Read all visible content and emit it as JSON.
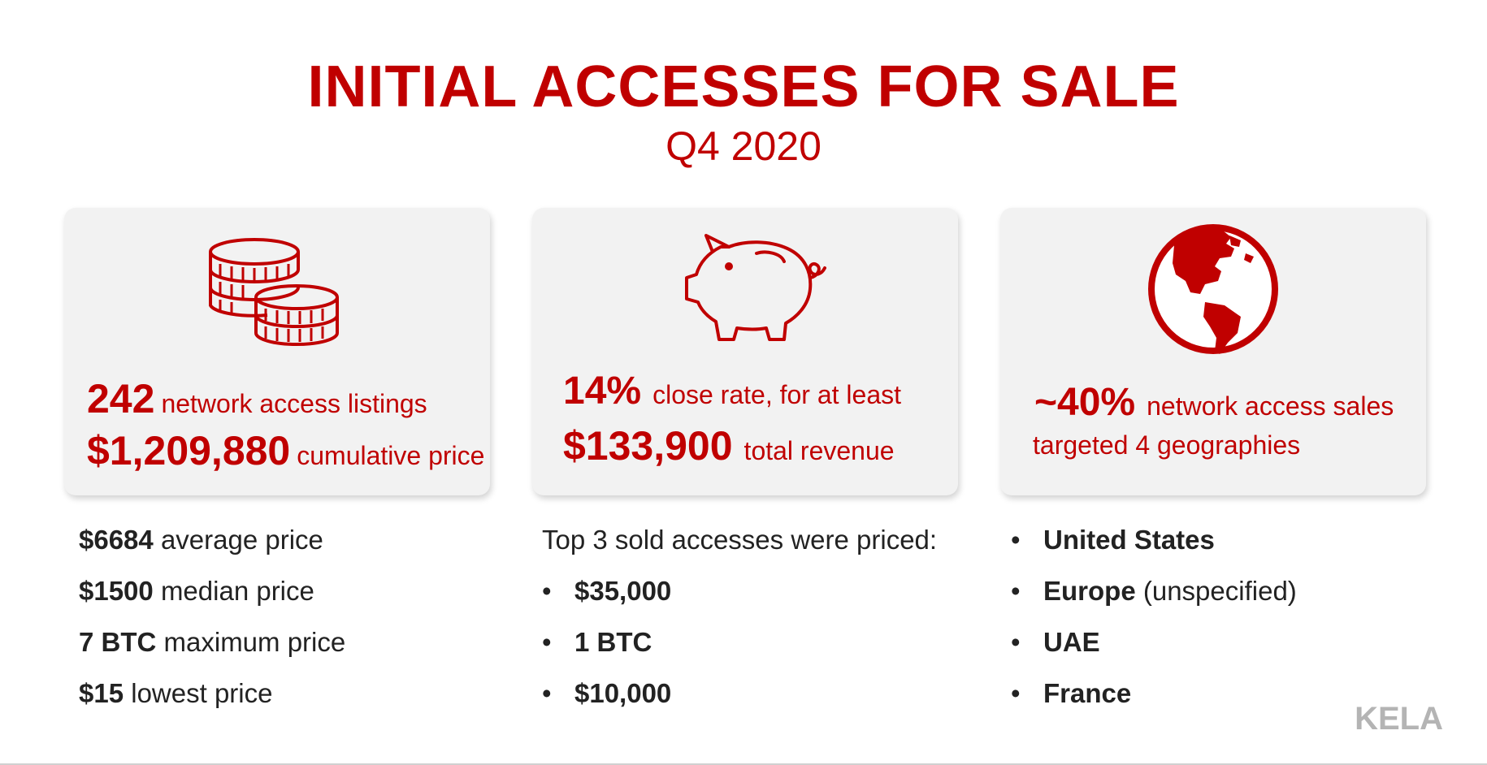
{
  "header": {
    "title": "INITIAL ACCESSES FOR SALE",
    "subtitle": "Q4 2020"
  },
  "cards": [
    {
      "icon": "coins-icon",
      "line1_value": "242",
      "line1_text": "network access listings",
      "line2_value": "$1,209,880",
      "line2_text": "cumulative price"
    },
    {
      "icon": "piggy-bank-icon",
      "line1_value": "14%",
      "line1_text": "close rate, for at least",
      "line2_value": "$133,900",
      "line2_text": "total  revenue"
    },
    {
      "icon": "globe-icon",
      "line1_value": "~40%",
      "line1_text": "network access sales",
      "line2_text": "targeted 4 geographies"
    }
  ],
  "price_stats": [
    {
      "value": "$6684",
      "label": "average price"
    },
    {
      "value": "$1500",
      "label": "median price"
    },
    {
      "value": "7 BTC",
      "label": "maximum price"
    },
    {
      "value": "$15",
      "label": "lowest price"
    }
  ],
  "top_sold": {
    "heading": "Top 3 sold accesses were priced:",
    "bullet": "•",
    "items": [
      "$35,000",
      "1 BTC",
      "$10,000"
    ]
  },
  "geographies": {
    "bullet": "•",
    "items": [
      {
        "name": "United States",
        "note": ""
      },
      {
        "name": "Europe",
        "note": "(unspecified)"
      },
      {
        "name": "UAE",
        "note": ""
      },
      {
        "name": "France",
        "note": ""
      }
    ]
  },
  "brand": "KELA",
  "colors": {
    "accent": "#c00000",
    "card_bg": "#f2f2f2",
    "text": "#222222",
    "brand": "#b4b4b4"
  }
}
